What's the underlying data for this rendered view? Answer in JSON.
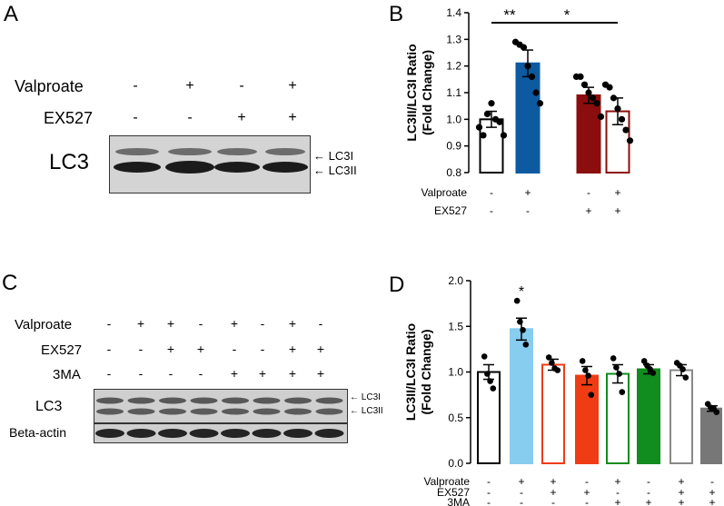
{
  "panels": {
    "A": {
      "letter": "A",
      "rows": [
        {
          "label": "Valproate",
          "signs": [
            "-",
            "+",
            "-",
            "+"
          ]
        },
        {
          "label": "EX527",
          "signs": [
            "-",
            "-",
            "+",
            "+"
          ]
        }
      ],
      "blot_label": "LC3",
      "band_labels": [
        "LC3I",
        "LC3II"
      ]
    },
    "C": {
      "letter": "C",
      "rows": [
        {
          "label": "Valproate",
          "signs": [
            "-",
            "+",
            "+",
            "-",
            "+",
            "-",
            "+",
            "-"
          ]
        },
        {
          "label": "EX527",
          "signs": [
            "-",
            "-",
            "+",
            "+",
            "-",
            "-",
            "+",
            "+"
          ]
        },
        {
          "label": "3MA",
          "signs": [
            "-",
            "-",
            "-",
            "-",
            "+",
            "+",
            "+",
            "+"
          ]
        }
      ],
      "blot_label": "LC3",
      "actin_label": "Beta-actin",
      "band_labels": [
        "LC3I",
        "LC3II"
      ]
    }
  },
  "colors": {
    "B": [
      "#ffffff",
      "#0d5aa0",
      "#8b0d0d",
      "#ffffff"
    ],
    "B_edge": [
      "#000000",
      "#0d5aa0",
      "#8b0d0d",
      "#8b0d0d"
    ],
    "D": [
      "#ffffff",
      "#87cdf0",
      "#ffffff",
      "#f03c14",
      "#ffffff",
      "#118c1e",
      "#ffffff",
      "#777777"
    ],
    "D_edge": [
      "#000000",
      "#87cdf0",
      "#f03c14",
      "#f03c14",
      "#118c1e",
      "#118c1e",
      "#888888",
      "#777777"
    ]
  },
  "chart_data": [
    {
      "panel": "B",
      "type": "bar",
      "ylabel": "LC3II/LC3I Ratio\n(Fold Change)",
      "ylim": [
        0.8,
        1.4
      ],
      "yticks": [
        "0.8",
        "0.9",
        "1.0",
        "1.1",
        "1.2",
        "1.3",
        "1.4"
      ],
      "values": [
        1.0,
        1.21,
        1.09,
        1.03
      ],
      "errors": [
        0.03,
        0.05,
        0.03,
        0.05
      ],
      "points": [
        [
          0.97,
          0.94,
          1.02,
          1.06,
          1.0,
          0.99,
          0.94
        ],
        [
          1.29,
          1.28,
          1.27,
          1.2,
          1.16,
          1.1,
          1.06
        ],
        [
          1.16,
          1.16,
          1.13,
          1.1,
          1.08,
          1.06,
          1.01
        ],
        [
          1.13,
          1.12,
          1.08,
          1.04,
          1.0,
          0.96,
          0.92
        ]
      ],
      "row_labels": [
        "Valproate",
        "EX527"
      ],
      "signs": [
        [
          "-",
          "+",
          "-",
          "+"
        ],
        [
          "-",
          "-",
          "+",
          "+"
        ]
      ],
      "significance": [
        "**",
        "*"
      ]
    },
    {
      "panel": "D",
      "type": "bar",
      "ylabel": "LC3II/LC3I Ratio\n(Fold Change)",
      "ylim": [
        0.0,
        2.0
      ],
      "yticks": [
        "0.0",
        "0.5",
        "1.0",
        "1.5",
        "2.0"
      ],
      "values": [
        1.0,
        1.47,
        1.08,
        0.96,
        0.98,
        1.03,
        1.02,
        0.6
      ],
      "errors": [
        0.08,
        0.12,
        0.06,
        0.1,
        0.1,
        0.05,
        0.06,
        0.03
      ],
      "points": [
        [
          1.17,
          0.98,
          0.9,
          0.82
        ],
        [
          1.78,
          1.55,
          1.46,
          1.3
        ],
        [
          1.16,
          1.1,
          1.04,
          1.02
        ],
        [
          1.12,
          1.02,
          0.96,
          0.75
        ],
        [
          1.15,
          1.05,
          0.98,
          0.78
        ],
        [
          1.12,
          1.07,
          1.03,
          0.99
        ],
        [
          1.1,
          1.07,
          1.03,
          0.94
        ],
        [
          0.65,
          0.61,
          0.6,
          0.56
        ]
      ],
      "row_labels": [
        "Valproate",
        "EX527",
        "3MA"
      ],
      "signs": [
        [
          "-",
          "+",
          "+",
          "-",
          "+",
          "-",
          "+",
          "-"
        ],
        [
          "-",
          "-",
          "+",
          "+",
          "-",
          "-",
          "+",
          "+"
        ],
        [
          "-",
          "-",
          "-",
          "-",
          "+",
          "+",
          "+",
          "+"
        ]
      ],
      "significance": [
        "*"
      ]
    }
  ]
}
